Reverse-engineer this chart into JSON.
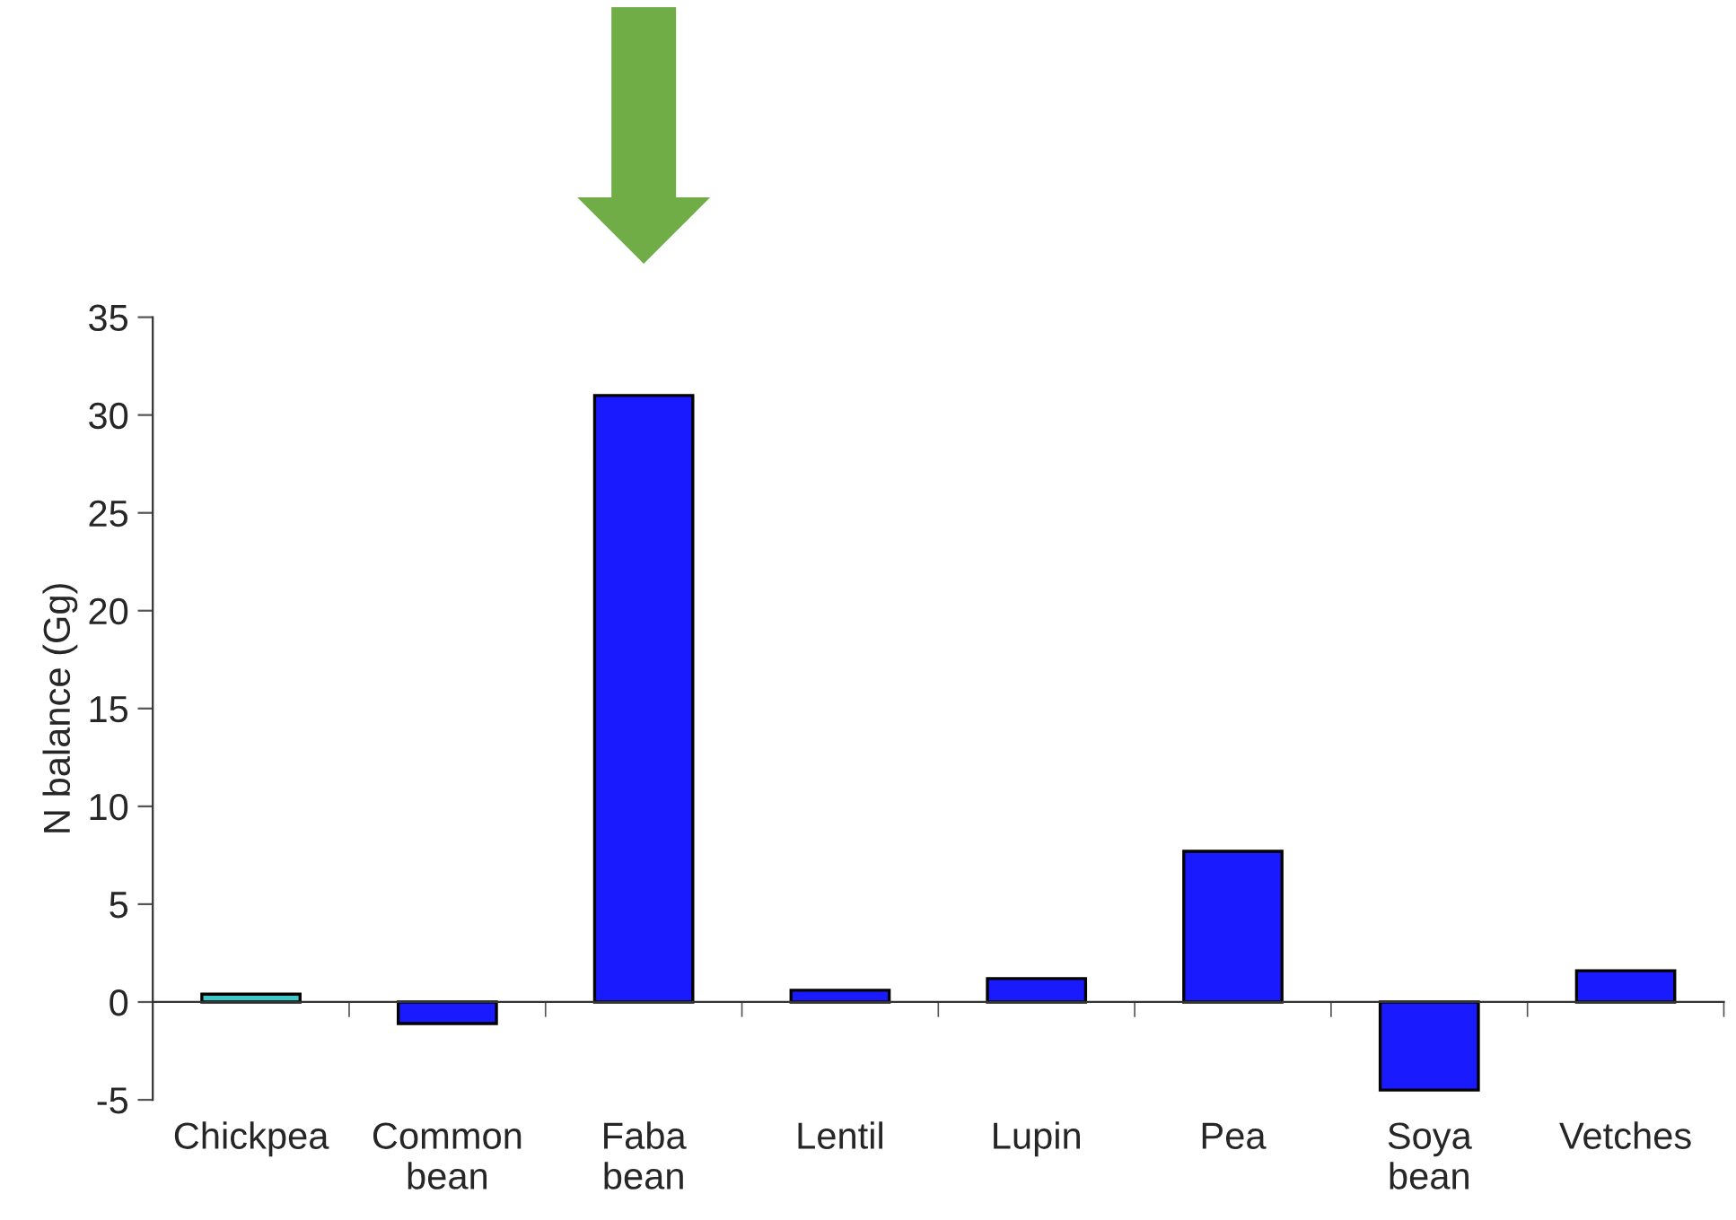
{
  "chart_data": {
    "type": "bar",
    "ylabel": "N balance (Gg)",
    "categories": [
      "Chickpea",
      "Common\nbean",
      "Faba\nbean",
      "Lentil",
      "Lupin",
      "Pea",
      "Soya\nbean",
      "Vetches"
    ],
    "values": [
      0.4,
      -1.1,
      31,
      0.6,
      1.2,
      7.7,
      -4.5,
      1.6
    ],
    "colors": [
      "#3cc8c8",
      "#1a1aff",
      "#1a1aff",
      "#1a1aff",
      "#1a1aff",
      "#1a1aff",
      "#1a1aff",
      "#1a1aff"
    ],
    "ylim": [
      -5,
      35
    ],
    "yticks": [
      -5,
      0,
      5,
      10,
      15,
      20,
      25,
      30,
      35
    ]
  }
}
